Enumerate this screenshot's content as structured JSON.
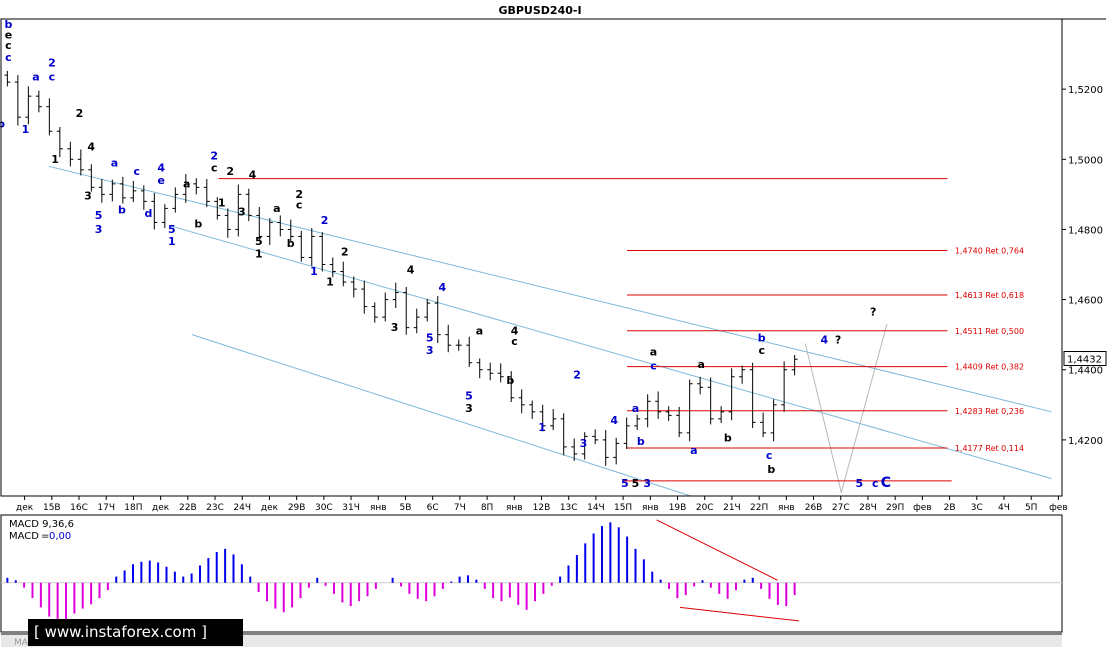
{
  "chart_data": [
    {
      "type": "candlestick",
      "title": "GBPUSD240-I",
      "ylim": [
        1.404,
        1.54
      ],
      "y_ticks": [
        "1,5200",
        "1,5000",
        "1,4800",
        "1,4600",
        "1,4400",
        "1,4200"
      ],
      "y_tick_values": [
        1.52,
        1.5,
        1.48,
        1.46,
        1.44,
        1.42
      ],
      "x_ticks": [
        "15В",
        "16С",
        "17Ч",
        "18П",
        "дек",
        "22В",
        "23С",
        "24Ч",
        "дек",
        "29В",
        "30С",
        "31Ч",
        "янв",
        "5В",
        "6С",
        "7Ч",
        "8П",
        "янв",
        "12В",
        "13С",
        "14Ч",
        "15П",
        "янв",
        "19В",
        "20С",
        "21Ч",
        "22П",
        "янв",
        "26В",
        "27С",
        "28Ч",
        "29П",
        "фев",
        "2В",
        "3С",
        "4Ч",
        "5П",
        "фев"
      ],
      "x_ticks_first": "дек",
      "current_price": "1,4432",
      "current_price_value": 1.4432,
      "close_path": [
        1.522,
        1.512,
        1.518,
        1.515,
        1.508,
        1.503,
        1.5,
        1.497,
        1.492,
        1.49,
        1.493,
        1.489,
        1.491,
        1.488,
        1.482,
        1.486,
        1.49,
        1.493,
        1.492,
        1.488,
        1.484,
        1.48,
        1.49,
        1.484,
        1.478,
        1.482,
        1.48,
        1.478,
        1.472,
        1.478,
        1.47,
        1.468,
        1.465,
        1.463,
        1.458,
        1.455,
        1.46,
        1.462,
        1.452,
        1.455,
        1.459,
        1.45,
        1.447,
        1.447,
        1.442,
        1.44,
        1.439,
        1.438,
        1.432,
        1.43,
        1.428,
        1.424,
        1.426,
        1.418,
        1.416,
        1.421,
        1.42,
        1.415,
        1.419,
        1.424,
        1.426,
        1.431,
        1.428,
        1.427,
        1.422,
        1.436,
        1.435,
        1.426,
        1.428,
        1.438,
        1.44,
        1.425,
        1.422,
        1.43,
        1.44,
        1.443
      ],
      "levels": [
        {
          "label": "",
          "value": 1.4945
        },
        {
          "label": "1,4740 Ret 0,764",
          "value": 1.474
        },
        {
          "label": "1,4613 Ret 0,618",
          "value": 1.4613
        },
        {
          "label": "1,4511 Ret 0,500",
          "value": 1.4511
        },
        {
          "label": "1,4409 Ret 0,382",
          "value": 1.4409
        },
        {
          "label": "1,4283 Ret 0,236",
          "value": 1.4283
        },
        {
          "label": "1,4177 Ret 0,114",
          "value": 1.4177
        },
        {
          "label": "",
          "value": 1.4083
        }
      ],
      "channels": [
        {
          "from": [
            0.045,
            1.498
          ],
          "to": [
            0.99,
            1.428
          ]
        },
        {
          "from": [
            0.16,
            1.481
          ],
          "to": [
            0.99,
            1.409
          ]
        },
        {
          "from": [
            0.18,
            1.45
          ],
          "to": [
            0.65,
            1.404
          ]
        }
      ],
      "projection_path": [
        [
          0.758,
          1.4475
        ],
        [
          0.792,
          1.405
        ],
        [
          0.835,
          1.453
        ]
      ],
      "wave_labels": [
        {
          "text": "b",
          "x": 0.007,
          "y": 1.5375,
          "color": "#0000cc"
        },
        {
          "text": "e",
          "x": 0.007,
          "y": 1.5345,
          "color": "#000000"
        },
        {
          "text": "c",
          "x": 0.007,
          "y": 1.5315,
          "color": "#000000"
        },
        {
          "text": "c",
          "x": 0.007,
          "y": 1.528,
          "color": "#0000cc"
        },
        {
          "text": "b",
          "x": 0.0,
          "y": 1.509,
          "color": "#0000cc"
        },
        {
          "text": "a",
          "x": 0.033,
          "y": 1.5225,
          "color": "#0000cc"
        },
        {
          "text": "1",
          "x": 0.023,
          "y": 1.5075,
          "color": "#0000cc"
        },
        {
          "text": "2",
          "x": 0.048,
          "y": 1.5265,
          "color": "#0000cc"
        },
        {
          "text": "c",
          "x": 0.048,
          "y": 1.5225,
          "color": "#0000cc"
        },
        {
          "text": "1",
          "x": 0.051,
          "y": 1.499,
          "color": "#000000"
        },
        {
          "text": "2",
          "x": 0.074,
          "y": 1.512,
          "color": "#000000"
        },
        {
          "text": "4",
          "x": 0.085,
          "y": 1.5025,
          "color": "#000000"
        },
        {
          "text": "3",
          "x": 0.082,
          "y": 1.4885,
          "color": "#000000"
        },
        {
          "text": "5",
          "x": 0.092,
          "y": 1.483,
          "color": "#0000cc"
        },
        {
          "text": "3",
          "x": 0.092,
          "y": 1.479,
          "color": "#0000cc"
        },
        {
          "text": "a",
          "x": 0.107,
          "y": 1.498,
          "color": "#0000cc"
        },
        {
          "text": "b",
          "x": 0.114,
          "y": 1.4845,
          "color": "#0000cc"
        },
        {
          "text": "c",
          "x": 0.128,
          "y": 1.4955,
          "color": "#0000cc"
        },
        {
          "text": "d",
          "x": 0.139,
          "y": 1.4835,
          "color": "#0000cc"
        },
        {
          "text": "4",
          "x": 0.151,
          "y": 1.4965,
          "color": "#0000cc"
        },
        {
          "text": "e",
          "x": 0.151,
          "y": 1.493,
          "color": "#0000cc"
        },
        {
          "text": "5",
          "x": 0.161,
          "y": 1.479,
          "color": "#0000cc"
        },
        {
          "text": "1",
          "x": 0.161,
          "y": 1.4755,
          "color": "#0000cc"
        },
        {
          "text": "a",
          "x": 0.175,
          "y": 1.492,
          "color": "#000000"
        },
        {
          "text": "b",
          "x": 0.186,
          "y": 1.4805,
          "color": "#000000"
        },
        {
          "text": "2",
          "x": 0.201,
          "y": 1.5,
          "color": "#0000cc"
        },
        {
          "text": "c",
          "x": 0.201,
          "y": 1.4965,
          "color": "#000000"
        },
        {
          "text": "1",
          "x": 0.208,
          "y": 1.4865,
          "color": "#000000"
        },
        {
          "text": "2",
          "x": 0.216,
          "y": 1.4955,
          "color": "#000000"
        },
        {
          "text": "3",
          "x": 0.227,
          "y": 1.484,
          "color": "#000000"
        },
        {
          "text": "4",
          "x": 0.237,
          "y": 1.4945,
          "color": "#000000"
        },
        {
          "text": "5",
          "x": 0.243,
          "y": 1.4755,
          "color": "#000000"
        },
        {
          "text": "1",
          "x": 0.243,
          "y": 1.472,
          "color": "#000000"
        },
        {
          "text": "2",
          "x": 0.281,
          "y": 1.489,
          "color": "#000000"
        },
        {
          "text": "c",
          "x": 0.281,
          "y": 1.486,
          "color": "#000000"
        },
        {
          "text": "a",
          "x": 0.26,
          "y": 1.485,
          "color": "#000000"
        },
        {
          "text": "b",
          "x": 0.273,
          "y": 1.475,
          "color": "#000000"
        },
        {
          "text": "2",
          "x": 0.305,
          "y": 1.4815,
          "color": "#0000cc"
        },
        {
          "text": "1",
          "x": 0.295,
          "y": 1.467,
          "color": "#0000cc"
        },
        {
          "text": "1",
          "x": 0.31,
          "y": 1.464,
          "color": "#000000"
        },
        {
          "text": "2",
          "x": 0.324,
          "y": 1.4725,
          "color": "#000000"
        },
        {
          "text": "4",
          "x": 0.386,
          "y": 1.4675,
          "color": "#000000"
        },
        {
          "text": "3",
          "x": 0.371,
          "y": 1.451,
          "color": "#000000"
        },
        {
          "text": "4",
          "x": 0.416,
          "y": 1.4625,
          "color": "#0000cc"
        },
        {
          "text": "5",
          "x": 0.404,
          "y": 1.448,
          "color": "#0000cc"
        },
        {
          "text": "3",
          "x": 0.404,
          "y": 1.4445,
          "color": "#0000cc"
        },
        {
          "text": "a",
          "x": 0.451,
          "y": 1.45,
          "color": "#000000"
        },
        {
          "text": "4",
          "x": 0.484,
          "y": 1.45,
          "color": "#000000"
        },
        {
          "text": "c",
          "x": 0.484,
          "y": 1.447,
          "color": "#000000"
        },
        {
          "text": "b",
          "x": 0.48,
          "y": 1.436,
          "color": "#000000"
        },
        {
          "text": "5",
          "x": 0.441,
          "y": 1.4315,
          "color": "#0000cc"
        },
        {
          "text": "3",
          "x": 0.441,
          "y": 1.428,
          "color": "#000000"
        },
        {
          "text": "1",
          "x": 0.51,
          "y": 1.4225,
          "color": "#0000cc"
        },
        {
          "text": "2",
          "x": 0.543,
          "y": 1.4375,
          "color": "#0000cc"
        },
        {
          "text": "3",
          "x": 0.549,
          "y": 1.418,
          "color": "#0000cc"
        },
        {
          "text": "4",
          "x": 0.578,
          "y": 1.4245,
          "color": "#0000cc"
        },
        {
          "text": "a",
          "x": 0.598,
          "y": 1.428,
          "color": "#0000cc"
        },
        {
          "text": "b",
          "x": 0.603,
          "y": 1.4185,
          "color": "#0000cc"
        },
        {
          "text": "a",
          "x": 0.615,
          "y": 1.444,
          "color": "#000000"
        },
        {
          "text": "c",
          "x": 0.615,
          "y": 1.44,
          "color": "#0000cc"
        },
        {
          "text": "a",
          "x": 0.653,
          "y": 1.416,
          "color": "#0000cc"
        },
        {
          "text": "a",
          "x": 0.66,
          "y": 1.4405,
          "color": "#000000"
        },
        {
          "text": "b",
          "x": 0.685,
          "y": 1.4195,
          "color": "#000000"
        },
        {
          "text": "b",
          "x": 0.717,
          "y": 1.448,
          "color": "#0000cc"
        },
        {
          "text": "c",
          "x": 0.717,
          "y": 1.4445,
          "color": "#000000"
        },
        {
          "text": "c",
          "x": 0.724,
          "y": 1.4145,
          "color": "#0000cc"
        },
        {
          "text": "b",
          "x": 0.726,
          "y": 1.4105,
          "color": "#000000"
        },
        {
          "text": "4",
          "x": 0.776,
          "y": 1.4475,
          "color": "#0000cc"
        },
        {
          "text": "?",
          "x": 0.789,
          "y": 1.4475,
          "color": "#000000"
        },
        {
          "text": "?",
          "x": 0.822,
          "y": 1.4555,
          "color": "#000000"
        },
        {
          "text": "5",
          "x": 0.588,
          "y": 1.4065,
          "color": "#0000cc"
        },
        {
          "text": "5",
          "x": 0.598,
          "y": 1.4065,
          "color": "#000000"
        },
        {
          "text": "3",
          "x": 0.609,
          "y": 1.4065,
          "color": "#0000cc"
        },
        {
          "text": "5",
          "x": 0.809,
          "y": 1.4065,
          "color": "#0000cc"
        },
        {
          "text": "c",
          "x": 0.824,
          "y": 1.4065,
          "color": "#0000cc"
        },
        {
          "text": "C",
          "x": 0.834,
          "y": 1.4065,
          "color": "#0000cc"
        }
      ],
      "colors": {
        "level": "#dd0000",
        "channel": "#7fb8d8",
        "projection": "#b8b8b8",
        "wave_blue": "#0000cc",
        "wave_black": "#000000"
      }
    },
    {
      "type": "bar",
      "title": "MACD 9,36,6",
      "series_label": "MACD",
      "series_value": "0,00",
      "ylim": [
        -0.008,
        0.011
      ],
      "values": [
        0.0008,
        0.0004,
        -0.0008,
        -0.0025,
        -0.004,
        -0.0055,
        -0.0062,
        -0.006,
        -0.005,
        -0.0042,
        -0.0035,
        -0.0025,
        -0.0012,
        0.001,
        0.002,
        0.003,
        0.0034,
        0.0036,
        0.0033,
        0.0026,
        0.0018,
        0.001,
        0.0015,
        0.0028,
        0.004,
        0.005,
        0.0055,
        0.0046,
        0.003,
        0.001,
        -0.0015,
        -0.003,
        -0.0042,
        -0.0048,
        -0.004,
        -0.0025,
        -0.0008,
        0.0008,
        -0.0005,
        -0.0018,
        -0.0032,
        -0.0038,
        -0.003,
        -0.0022,
        -0.001,
        0.0,
        0.0008,
        -0.0006,
        -0.0018,
        -0.0026,
        -0.003,
        -0.0022,
        -0.001,
        0.0002,
        0.001,
        0.0012,
        0.0005,
        -0.001,
        -0.0025,
        -0.003,
        -0.0024,
        -0.0036,
        -0.0044,
        -0.003,
        -0.0018,
        -0.0005,
        0.001,
        0.0028,
        0.0045,
        0.0064,
        0.008,
        0.0092,
        0.0098,
        0.009,
        0.0075,
        0.0055,
        0.0038,
        0.0018,
        0.0005,
        -0.001,
        -0.0025,
        -0.002,
        -0.0006,
        0.0004,
        -0.0008,
        -0.0018,
        -0.0026,
        -0.0012,
        0.0005,
        0.0008,
        -0.001,
        -0.0026,
        -0.0036,
        -0.0038,
        -0.002
      ],
      "trend_lines": [
        {
          "from": [
            0.618,
            0.0102
          ],
          "to": [
            0.732,
            0.0004
          ]
        },
        {
          "from": [
            0.64,
            -0.004
          ],
          "to": [
            0.752,
            -0.0062
          ]
        }
      ]
    }
  ],
  "watermark": {
    "text": "[ www.instaforex.com ]"
  },
  "bottom_strip_text": "MACD 9,36,6 MACD 9,36,6 MACD 9,36,6"
}
